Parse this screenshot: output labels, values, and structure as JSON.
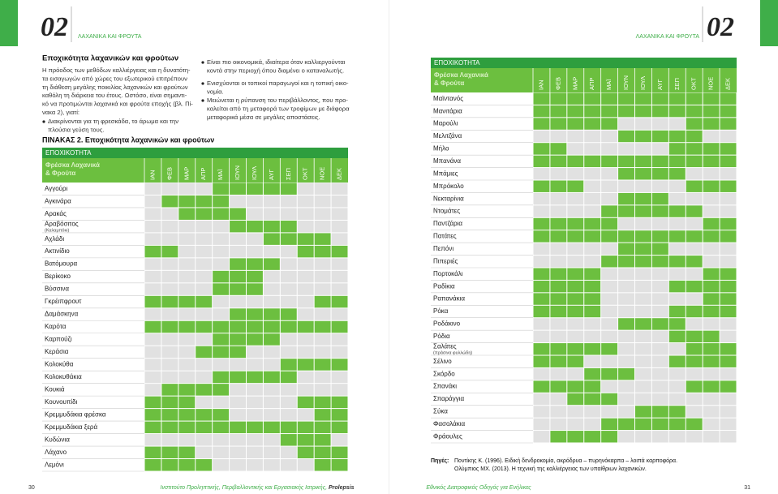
{
  "left_page": {
    "chapter": "02",
    "section": "ΛΑΧΑΝΙΚΑ ΚΑΙ ΦΡΟΥΤΑ",
    "heading": "Εποχικότητα λαχανικών και φρούτων",
    "paragraph": [
      "Η πρόοδος των μεθόδων καλλιέργειας και η δυνατότη-",
      "τα εισαγωγών από χώρες του εξωτερικού επιτρέπουν",
      "τη διάθεση μεγάλης ποικιλίας λαχανικών και φρούτων",
      "καθόλη τη διάρκεια του έτους. Ωστόσο, είναι σημαντι-",
      "κό να προτιμώνται λαχανικά και φρούτα εποχής (βλ. Πί-",
      "νακα 2), γιατί:"
    ],
    "bullets": [
      [
        "Διακρίνονται για τη φρεσκάδα, το άρωμα και την",
        "πλούσια γεύση τους."
      ],
      [
        "Είναι πιο οικονομικά, ιδιαίτερα όταν καλλιεργούνται",
        "κοντά στην περιοχή όπου διαμένει ο καταναλωτής."
      ],
      [
        "Ενισχύονται οι τοπικοί παραγωγοί και η τοπική οικο-",
        "νομία."
      ],
      [
        "Μειώνεται η ρύπανση του περιβάλλοντος, που προ-",
        "καλείται από τη μεταφορά των τροφίμων με διάφορα",
        "μεταφορικά μέσα σε μεγάλες αποστάσεις."
      ]
    ],
    "table_title": "ΠΙΝΑΚΑΣ 2. Εποχικότητα λαχανικών και φρούτων",
    "page_number": "30",
    "footer": "Ινστιτούτο Προληπτικής, Περιβαλλοντικής και Εργασιακής Ιατρικής, ",
    "footer_brand": "Prolepsis"
  },
  "table_left": {
    "title": "ΕΠΟΧΙΚΟΤΗΤΑ",
    "header": [
      "Φρέσκα Λαχανικά",
      "& Φρούτα"
    ],
    "months": [
      "ΙΑΝ",
      "ΦΕΒ",
      "ΜΑΡ",
      "ΑΠΡ",
      "ΜΑΪ",
      "ΙΟΥΝ",
      "ΙΟΥΛ",
      "ΑΥΓ",
      "ΣΕΠ",
      "ΟΚΤ",
      "ΝΟΕ",
      "ΔΕΚ"
    ],
    "rows": [
      {
        "name": "Αγγούρι",
        "season": [
          0,
          0,
          0,
          0,
          1,
          1,
          1,
          1,
          1,
          0,
          0,
          0
        ]
      },
      {
        "name": "Αγκινάρα",
        "season": [
          0,
          1,
          1,
          1,
          1,
          0,
          0,
          0,
          0,
          0,
          0,
          0
        ]
      },
      {
        "name": "Αρακάς",
        "season": [
          0,
          0,
          1,
          1,
          1,
          1,
          0,
          0,
          0,
          0,
          0,
          0
        ]
      },
      {
        "name": "Αραβόσιτος",
        "note": "(Καλαμπόκι)",
        "season": [
          0,
          0,
          0,
          0,
          0,
          1,
          1,
          1,
          1,
          0,
          0,
          0
        ]
      },
      {
        "name": "Αχλάδι",
        "season": [
          0,
          0,
          0,
          0,
          0,
          0,
          0,
          1,
          1,
          1,
          1,
          0
        ]
      },
      {
        "name": "Ακτινίδιο",
        "season": [
          1,
          1,
          0,
          0,
          0,
          0,
          0,
          0,
          0,
          1,
          1,
          1
        ]
      },
      {
        "name": "Βατόμουρα",
        "season": [
          0,
          0,
          0,
          0,
          0,
          1,
          1,
          1,
          0,
          0,
          0,
          0
        ]
      },
      {
        "name": "Βερίκοκο",
        "season": [
          0,
          0,
          0,
          0,
          1,
          1,
          1,
          0,
          0,
          0,
          0,
          0
        ]
      },
      {
        "name": "Βύσσινα",
        "season": [
          0,
          0,
          0,
          0,
          1,
          1,
          1,
          0,
          0,
          0,
          0,
          0
        ]
      },
      {
        "name": "Γκρέιπφρουτ",
        "season": [
          1,
          1,
          1,
          1,
          0,
          0,
          0,
          0,
          0,
          0,
          1,
          1
        ]
      },
      {
        "name": "Δαμάσκηνα",
        "season": [
          0,
          0,
          0,
          0,
          0,
          1,
          1,
          1,
          1,
          0,
          0,
          0
        ]
      },
      {
        "name": "Καρότα",
        "season": [
          1,
          1,
          1,
          1,
          1,
          1,
          1,
          1,
          1,
          1,
          1,
          1
        ]
      },
      {
        "name": "Καρπούζι",
        "season": [
          0,
          0,
          0,
          0,
          1,
          1,
          1,
          1,
          0,
          0,
          0,
          0
        ]
      },
      {
        "name": "Κεράσια",
        "season": [
          0,
          0,
          0,
          1,
          1,
          1,
          0,
          0,
          0,
          0,
          0,
          0
        ]
      },
      {
        "name": "Κολοκύθα",
        "season": [
          0,
          0,
          0,
          0,
          0,
          0,
          0,
          0,
          1,
          1,
          1,
          1
        ]
      },
      {
        "name": "Κολοκυθάκια",
        "season": [
          0,
          0,
          0,
          0,
          1,
          1,
          1,
          1,
          1,
          0,
          0,
          0
        ]
      },
      {
        "name": "Κουκιά",
        "season": [
          0,
          1,
          1,
          1,
          1,
          0,
          0,
          0,
          0,
          0,
          0,
          0
        ]
      },
      {
        "name": "Κουνουπίδι",
        "season": [
          1,
          1,
          1,
          0,
          0,
          0,
          0,
          0,
          0,
          1,
          1,
          1
        ]
      },
      {
        "name": "Κρεμμυδάκια φρέσκα",
        "season": [
          1,
          1,
          1,
          1,
          1,
          0,
          0,
          0,
          0,
          0,
          1,
          1
        ]
      },
      {
        "name": "Κρεμμυδάκια ξερά",
        "season": [
          1,
          1,
          1,
          1,
          1,
          1,
          1,
          1,
          1,
          1,
          1,
          1
        ]
      },
      {
        "name": "Κυδώνια",
        "season": [
          0,
          0,
          0,
          0,
          0,
          0,
          0,
          0,
          1,
          1,
          1,
          0
        ]
      },
      {
        "name": "Λάχανο",
        "season": [
          1,
          1,
          1,
          0,
          0,
          0,
          0,
          0,
          0,
          1,
          1,
          1
        ]
      },
      {
        "name": "Λεμόνι",
        "season": [
          1,
          1,
          1,
          1,
          0,
          0,
          0,
          0,
          0,
          0,
          1,
          1
        ]
      }
    ]
  },
  "table_right": {
    "title": "ΕΠΟΧΙΚΟΤΗΤΑ",
    "header": [
      "Φρέσκα Λαχανικά",
      "& Φρούτα"
    ],
    "months": [
      "ΙΑΝ",
      "ΦΕΒ",
      "ΜΑΡ",
      "ΑΠΡ",
      "ΜΑΪ",
      "ΙΟΥΝ",
      "ΙΟΥΛ",
      "ΑΥΓ",
      "ΣΕΠ",
      "ΟΚΤ",
      "ΝΟΕ",
      "ΔΕΚ"
    ],
    "rows": [
      {
        "name": "Μαϊντανός",
        "season": [
          1,
          1,
          1,
          1,
          1,
          1,
          1,
          1,
          1,
          1,
          1,
          1
        ]
      },
      {
        "name": "Μανιτάρια",
        "season": [
          1,
          1,
          1,
          1,
          1,
          1,
          1,
          1,
          1,
          1,
          1,
          1
        ]
      },
      {
        "name": "Μαρούλι",
        "season": [
          1,
          1,
          1,
          1,
          1,
          0,
          0,
          0,
          0,
          1,
          1,
          1
        ]
      },
      {
        "name": "Μελιτζάνα",
        "season": [
          0,
          0,
          0,
          0,
          0,
          1,
          1,
          1,
          1,
          1,
          0,
          0
        ]
      },
      {
        "name": "Μήλο",
        "season": [
          1,
          1,
          0,
          0,
          0,
          0,
          0,
          0,
          1,
          1,
          1,
          1
        ]
      },
      {
        "name": "Μπανάνα",
        "season": [
          1,
          1,
          1,
          1,
          1,
          1,
          1,
          1,
          1,
          1,
          1,
          1
        ]
      },
      {
        "name": "Μπάμιες",
        "season": [
          0,
          0,
          0,
          0,
          0,
          1,
          1,
          1,
          1,
          0,
          0,
          0
        ]
      },
      {
        "name": "Μπρόκολο",
        "season": [
          1,
          1,
          1,
          0,
          0,
          0,
          0,
          0,
          0,
          1,
          1,
          1
        ]
      },
      {
        "name": "Νεκταρίνια",
        "season": [
          0,
          0,
          0,
          0,
          0,
          1,
          1,
          1,
          0,
          0,
          0,
          0
        ]
      },
      {
        "name": "Ντομάτες",
        "season": [
          0,
          0,
          0,
          0,
          1,
          1,
          1,
          1,
          1,
          1,
          0,
          0
        ]
      },
      {
        "name": "Παντζάρια",
        "season": [
          1,
          1,
          1,
          1,
          1,
          0,
          0,
          0,
          0,
          0,
          1,
          1
        ]
      },
      {
        "name": "Πατάτες",
        "season": [
          1,
          1,
          1,
          1,
          1,
          1,
          1,
          1,
          1,
          1,
          1,
          1
        ]
      },
      {
        "name": "Πεπόνι",
        "season": [
          0,
          0,
          0,
          0,
          0,
          1,
          1,
          1,
          0,
          0,
          0,
          0
        ]
      },
      {
        "name": "Πιπεριές",
        "season": [
          0,
          0,
          0,
          0,
          1,
          1,
          1,
          1,
          1,
          1,
          0,
          0
        ]
      },
      {
        "name": "Πορτοκάλι",
        "season": [
          1,
          1,
          1,
          1,
          0,
          0,
          0,
          0,
          0,
          0,
          1,
          1
        ]
      },
      {
        "name": "Ραδίκια",
        "season": [
          1,
          1,
          1,
          1,
          0,
          0,
          0,
          0,
          1,
          1,
          1,
          1
        ]
      },
      {
        "name": "Ραπανάκια",
        "season": [
          1,
          1,
          1,
          1,
          0,
          0,
          0,
          0,
          0,
          0,
          1,
          1
        ]
      },
      {
        "name": "Ρόκα",
        "season": [
          1,
          1,
          1,
          1,
          0,
          0,
          0,
          0,
          1,
          1,
          1,
          1
        ]
      },
      {
        "name": "Ροδάκινο",
        "season": [
          0,
          0,
          0,
          0,
          0,
          1,
          1,
          1,
          1,
          0,
          0,
          0
        ]
      },
      {
        "name": "Ρόδια",
        "season": [
          0,
          0,
          0,
          0,
          0,
          0,
          0,
          0,
          1,
          1,
          1,
          0
        ]
      },
      {
        "name": "Σαλάτες",
        "note": "(πράσινα φυλλώδη)",
        "season": [
          1,
          1,
          1,
          1,
          1,
          0,
          0,
          0,
          0,
          1,
          1,
          1
        ]
      },
      {
        "name": "Σέλινο",
        "season": [
          1,
          1,
          1,
          0,
          0,
          0,
          0,
          0,
          1,
          1,
          1,
          1
        ]
      },
      {
        "name": "Σκόρδο",
        "season": [
          0,
          0,
          0,
          1,
          1,
          1,
          0,
          0,
          0,
          0,
          0,
          0
        ]
      },
      {
        "name": "Σπανάκι",
        "season": [
          1,
          1,
          1,
          1,
          0,
          0,
          0,
          0,
          0,
          1,
          1,
          1
        ]
      },
      {
        "name": "Σπαράγγια",
        "season": [
          0,
          0,
          1,
          1,
          1,
          0,
          0,
          0,
          0,
          0,
          0,
          0
        ]
      },
      {
        "name": "Σύκα",
        "season": [
          0,
          0,
          0,
          0,
          0,
          0,
          1,
          1,
          1,
          0,
          0,
          0
        ]
      },
      {
        "name": "Φασολάκια",
        "season": [
          0,
          0,
          0,
          0,
          1,
          1,
          1,
          1,
          1,
          1,
          0,
          0
        ]
      },
      {
        "name": "Φράουλες",
        "season": [
          0,
          1,
          1,
          1,
          1,
          0,
          0,
          0,
          0,
          0,
          0,
          0
        ]
      }
    ]
  },
  "right_page": {
    "chapter": "02",
    "section": "ΛΑΧΑΝΙΚΑ ΚΑΙ ΦΡΟΥΤΑ",
    "sources_label": "Πηγές:",
    "sources": [
      "Ποντίκης Κ. (1996). Ειδική δενδροκομία, ακρόδρυα – πυρηνόκαρπα – λοιπά καρποφόρα.",
      "Ολύμπιος ΜΧ. (2013). Η τεχνική της καλλιέργειας των υπαίθριων λαχανικών."
    ],
    "footer": "Εθνικός Διατροφικός Οδηγός για Ενήλικες",
    "page_number": "31"
  }
}
